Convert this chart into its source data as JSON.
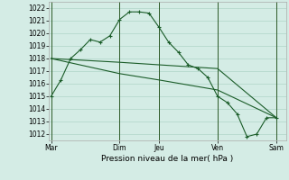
{
  "background_color": "#d4ece5",
  "grid_color": "#b0d4c8",
  "line_color": "#1a5c28",
  "marker_color": "#1a5c28",
  "title": "Pression niveau de la mer( hPa )",
  "ylim": [
    1011.5,
    1022.5
  ],
  "yticks": [
    1012,
    1013,
    1014,
    1015,
    1016,
    1017,
    1018,
    1019,
    1020,
    1021,
    1022
  ],
  "xtick_labels": [
    "Mar",
    "Dim",
    "Jeu",
    "Ven",
    "Sam"
  ],
  "xtick_positions": [
    0,
    3.5,
    5.5,
    8.5,
    11.5
  ],
  "vline_positions": [
    0,
    3.5,
    5.5,
    8.5,
    11.5
  ],
  "xlim": [
    -0.1,
    12.0
  ],
  "series_main": {
    "x": [
      0,
      0.5,
      1,
      1.5,
      2,
      2.5,
      3,
      3.5,
      4,
      4.5,
      5,
      5.5,
      6,
      6.5,
      7,
      7.5,
      8,
      8.5,
      9,
      9.5,
      10,
      10.5,
      11,
      11.5
    ],
    "y": [
      1015.0,
      1016.3,
      1018.0,
      1018.7,
      1019.5,
      1019.3,
      1019.8,
      1021.1,
      1021.7,
      1021.7,
      1021.6,
      1020.5,
      1019.3,
      1018.5,
      1017.5,
      1017.2,
      1016.5,
      1015.0,
      1014.5,
      1013.6,
      1011.8,
      1012.0,
      1013.3,
      1013.3
    ]
  },
  "series_trend1": {
    "x": [
      0,
      3.5,
      5.5,
      8.5,
      11.5
    ],
    "y": [
      1018.0,
      1017.7,
      1017.5,
      1017.2,
      1013.3
    ]
  },
  "series_trend2": {
    "x": [
      0,
      3.5,
      5.5,
      8.5,
      11.5
    ],
    "y": [
      1018.0,
      1016.8,
      1016.3,
      1015.5,
      1013.3
    ]
  },
  "title_fontsize": 6.5,
  "tick_fontsize": 5.5
}
